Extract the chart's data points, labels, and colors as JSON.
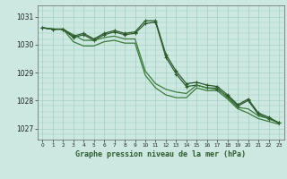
{
  "background_color": "#cce8e0",
  "grid_color": "#99ccbb",
  "line_color_dark": "#2d5a2d",
  "line_color_medium": "#3d7a3d",
  "title": "Graphe pression niveau de la mer (hPa)",
  "ylim": [
    1026.6,
    1031.4
  ],
  "yticks": [
    1027,
    1028,
    1029,
    1030,
    1031
  ],
  "hours": [
    0,
    1,
    2,
    3,
    4,
    5,
    6,
    7,
    8,
    9,
    10,
    11,
    12,
    13,
    14,
    15,
    16,
    17,
    18,
    19,
    20,
    21,
    22,
    23
  ],
  "line1": [
    1030.6,
    1030.55,
    1030.55,
    1030.3,
    1030.4,
    1030.2,
    1030.4,
    1030.5,
    1030.4,
    1030.45,
    1030.85,
    1030.85,
    1029.65,
    1029.05,
    1028.6,
    1028.65,
    1028.55,
    1028.5,
    1028.2,
    1027.85,
    1028.05,
    1027.55,
    1027.4,
    1027.2
  ],
  "line2": [
    1030.6,
    1030.55,
    1030.55,
    1030.35,
    1030.15,
    1030.15,
    1030.25,
    1030.3,
    1030.2,
    1030.2,
    1029.05,
    1028.6,
    1028.4,
    1028.3,
    1028.25,
    1028.55,
    1028.45,
    1028.45,
    1028.1,
    1027.75,
    1027.7,
    1027.45,
    1027.35,
    1027.2
  ],
  "line3": [
    1030.6,
    1030.55,
    1030.55,
    1030.25,
    1030.35,
    1030.15,
    1030.35,
    1030.45,
    1030.35,
    1030.4,
    1030.75,
    1030.8,
    1029.55,
    1028.95,
    1028.5,
    1028.55,
    1028.45,
    1028.4,
    1028.15,
    1027.8,
    1028.0,
    1027.5,
    1027.35,
    1027.2
  ],
  "line4": [
    1030.6,
    1030.55,
    1030.55,
    1030.1,
    1029.95,
    1029.95,
    1030.1,
    1030.15,
    1030.05,
    1030.05,
    1028.9,
    1028.45,
    1028.2,
    1028.1,
    1028.1,
    1028.45,
    1028.35,
    1028.35,
    1028.05,
    1027.7,
    1027.55,
    1027.35,
    1027.25,
    1027.15
  ]
}
